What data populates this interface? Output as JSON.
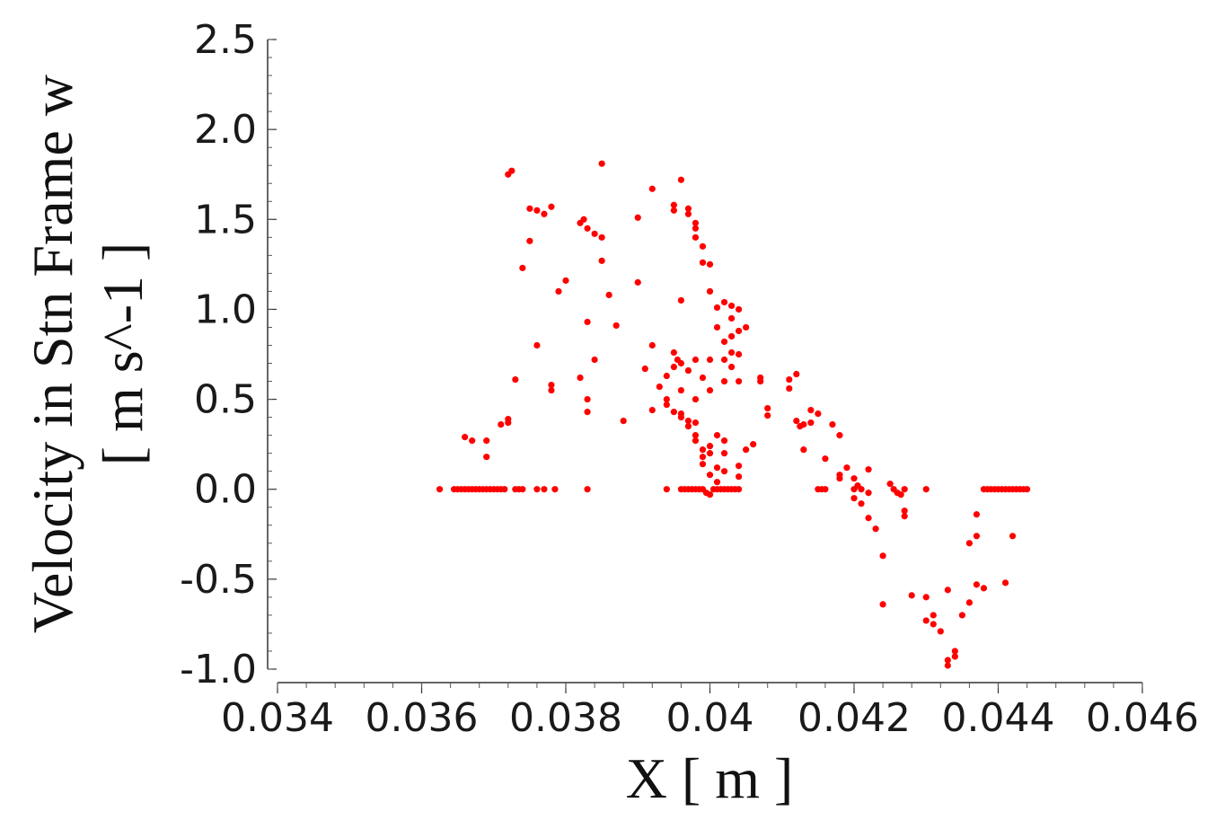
{
  "chart_data": {
    "type": "scatter",
    "xlabel": "X [ m ]",
    "ylabel_lines": [
      "Velocity in Stn Frame w",
      "[ m s^-1 ]"
    ],
    "xlim": [
      0.034,
      0.046
    ],
    "ylim": [
      -1.0,
      2.5
    ],
    "xticks": [
      "0.034",
      "0.036",
      "0.038",
      "0.04",
      "0.042",
      "0.044",
      "0.046"
    ],
    "yticks": [
      "-1.0",
      "-0.5",
      "0.0",
      "0.5",
      "1.0",
      "1.5",
      "2.0",
      "2.5"
    ],
    "grid": false,
    "marker_color": "#ff0000",
    "points": [
      [
        0.03625,
        0.0
      ],
      [
        0.03645,
        0.0
      ],
      [
        0.0365,
        0.0
      ],
      [
        0.03655,
        0.0
      ],
      [
        0.0366,
        0.0
      ],
      [
        0.03665,
        0.0
      ],
      [
        0.0367,
        0.0
      ],
      [
        0.03675,
        0.0
      ],
      [
        0.0368,
        0.0
      ],
      [
        0.03685,
        0.0
      ],
      [
        0.0369,
        0.0
      ],
      [
        0.03695,
        0.0
      ],
      [
        0.037,
        0.0
      ],
      [
        0.03705,
        0.0
      ],
      [
        0.0371,
        0.0
      ],
      [
        0.03715,
        0.0
      ],
      [
        0.0373,
        0.0
      ],
      [
        0.03735,
        0.0
      ],
      [
        0.0374,
        0.0
      ],
      [
        0.0376,
        0.0
      ],
      [
        0.0377,
        0.0
      ],
      [
        0.03785,
        0.0
      ],
      [
        0.0383,
        0.0
      ],
      [
        0.0366,
        0.29
      ],
      [
        0.0367,
        0.27
      ],
      [
        0.0369,
        0.18
      ],
      [
        0.0369,
        0.27
      ],
      [
        0.0371,
        0.36
      ],
      [
        0.0372,
        0.37
      ],
      [
        0.0372,
        0.39
      ],
      [
        0.0373,
        0.61
      ],
      [
        0.0372,
        1.75
      ],
      [
        0.03725,
        1.77
      ],
      [
        0.0374,
        1.23
      ],
      [
        0.0375,
        1.38
      ],
      [
        0.0375,
        1.56
      ],
      [
        0.0376,
        1.55
      ],
      [
        0.0377,
        1.53
      ],
      [
        0.0378,
        1.57
      ],
      [
        0.0376,
        0.8
      ],
      [
        0.0378,
        0.55
      ],
      [
        0.0378,
        0.58
      ],
      [
        0.0379,
        1.1
      ],
      [
        0.038,
        1.16
      ],
      [
        0.0382,
        1.48
      ],
      [
        0.03825,
        1.5
      ],
      [
        0.0383,
        1.45
      ],
      [
        0.0384,
        1.42
      ],
      [
        0.0385,
        1.4
      ],
      [
        0.0385,
        1.81
      ],
      [
        0.0385,
        1.27
      ],
      [
        0.0386,
        1.08
      ],
      [
        0.0387,
        0.91
      ],
      [
        0.0383,
        0.93
      ],
      [
        0.0384,
        0.72
      ],
      [
        0.0382,
        0.62
      ],
      [
        0.0383,
        0.5
      ],
      [
        0.0383,
        0.43
      ],
      [
        0.0388,
        0.38
      ],
      [
        0.039,
        1.15
      ],
      [
        0.039,
        1.51
      ],
      [
        0.0392,
        1.67
      ],
      [
        0.0391,
        0.67
      ],
      [
        0.0392,
        0.44
      ],
      [
        0.0392,
        0.8
      ],
      [
        0.0393,
        0.57
      ],
      [
        0.0394,
        0.63
      ],
      [
        0.0394,
        0.5
      ],
      [
        0.0394,
        0.47
      ],
      [
        0.0395,
        0.43
      ],
      [
        0.0395,
        0.68
      ],
      [
        0.03955,
        0.72
      ],
      [
        0.0396,
        0.4
      ],
      [
        0.0396,
        0.7
      ],
      [
        0.0395,
        0.76
      ],
      [
        0.0396,
        0.55
      ],
      [
        0.0395,
        1.58
      ],
      [
        0.0395,
        1.55
      ],
      [
        0.0396,
        1.72
      ],
      [
        0.0397,
        1.53
      ],
      [
        0.0397,
        1.56
      ],
      [
        0.0398,
        1.48
      ],
      [
        0.0398,
        1.45
      ],
      [
        0.0398,
        1.4
      ],
      [
        0.0399,
        1.35
      ],
      [
        0.0399,
        1.26
      ],
      [
        0.04,
        1.25
      ],
      [
        0.04,
        1.1
      ],
      [
        0.0396,
        1.05
      ],
      [
        0.0396,
        0.42
      ],
      [
        0.0397,
        0.38
      ],
      [
        0.0397,
        0.35
      ],
      [
        0.0398,
        0.3
      ],
      [
        0.0398,
        0.27
      ],
      [
        0.0398,
        0.37
      ],
      [
        0.0399,
        0.22
      ],
      [
        0.0399,
        0.18
      ],
      [
        0.0399,
        0.14
      ],
      [
        0.04,
        0.2
      ],
      [
        0.04,
        0.24
      ],
      [
        0.04,
        0.08
      ],
      [
        0.0401,
        0.3
      ],
      [
        0.0401,
        0.12
      ],
      [
        0.0401,
        0.04
      ],
      [
        0.0402,
        0.27
      ],
      [
        0.0402,
        0.2
      ],
      [
        0.0402,
        0.1
      ],
      [
        0.0398,
        0.5
      ],
      [
        0.0397,
        0.66
      ],
      [
        0.0398,
        0.72
      ],
      [
        0.0399,
        0.62
      ],
      [
        0.04,
        0.55
      ],
      [
        0.04,
        0.72
      ],
      [
        0.0401,
        0.9
      ],
      [
        0.0401,
        1.01
      ],
      [
        0.0402,
        1.04
      ],
      [
        0.0402,
        0.82
      ],
      [
        0.0402,
        0.72
      ],
      [
        0.0402,
        0.6
      ],
      [
        0.0403,
        1.02
      ],
      [
        0.0403,
        0.95
      ],
      [
        0.0403,
        0.85
      ],
      [
        0.0403,
        0.76
      ],
      [
        0.0403,
        0.68
      ],
      [
        0.0404,
        1.0
      ],
      [
        0.0404,
        0.88
      ],
      [
        0.0404,
        0.75
      ],
      [
        0.0404,
        0.6
      ],
      [
        0.0405,
        0.9
      ],
      [
        0.0404,
        0.13
      ],
      [
        0.0404,
        0.07
      ],
      [
        0.0405,
        0.22
      ],
      [
        0.0406,
        0.25
      ],
      [
        0.0407,
        0.62
      ],
      [
        0.0407,
        0.6
      ],
      [
        0.0394,
        0.0
      ],
      [
        0.0396,
        0.0
      ],
      [
        0.03965,
        0.0
      ],
      [
        0.0397,
        0.0
      ],
      [
        0.03975,
        0.0
      ],
      [
        0.0398,
        0.0
      ],
      [
        0.03985,
        0.0
      ],
      [
        0.0399,
        0.0
      ],
      [
        0.03995,
        -0.02
      ],
      [
        0.04,
        -0.03
      ],
      [
        0.04005,
        0.0
      ],
      [
        0.0401,
        0.0
      ],
      [
        0.04015,
        0.0
      ],
      [
        0.0402,
        0.0
      ],
      [
        0.04025,
        0.0
      ],
      [
        0.0403,
        0.0
      ],
      [
        0.04035,
        0.0
      ],
      [
        0.0404,
        0.0
      ],
      [
        0.0408,
        0.45
      ],
      [
        0.0408,
        0.41
      ],
      [
        0.0411,
        0.61
      ],
      [
        0.0412,
        0.64
      ],
      [
        0.0411,
        0.56
      ],
      [
        0.0412,
        0.38
      ],
      [
        0.04125,
        0.35
      ],
      [
        0.0413,
        0.36
      ],
      [
        0.0413,
        0.22
      ],
      [
        0.0414,
        0.44
      ],
      [
        0.0414,
        0.37
      ],
      [
        0.0415,
        0.42
      ],
      [
        0.0415,
        0.0
      ],
      [
        0.04155,
        0.0
      ],
      [
        0.0416,
        0.0
      ],
      [
        0.0416,
        0.17
      ],
      [
        0.0417,
        0.36
      ],
      [
        0.0418,
        0.08
      ],
      [
        0.0418,
        0.06
      ],
      [
        0.0418,
        0.3
      ],
      [
        0.0419,
        0.12
      ],
      [
        0.042,
        0.06
      ],
      [
        0.042,
        0.0
      ],
      [
        0.042,
        -0.05
      ],
      [
        0.04205,
        0.02
      ],
      [
        0.0421,
        -0.08
      ],
      [
        0.0421,
        0.0
      ],
      [
        0.0422,
        -0.02
      ],
      [
        0.0422,
        0.11
      ],
      [
        0.0422,
        -0.16
      ],
      [
        0.0423,
        -0.22
      ],
      [
        0.0424,
        -0.37
      ],
      [
        0.0424,
        -0.64
      ],
      [
        0.0425,
        0.03
      ],
      [
        0.04255,
        0.0
      ],
      [
        0.0426,
        -0.02
      ],
      [
        0.04265,
        -0.03
      ],
      [
        0.0427,
        0.0
      ],
      [
        0.0427,
        -0.12
      ],
      [
        0.0427,
        -0.15
      ],
      [
        0.0428,
        -0.59
      ],
      [
        0.043,
        0.0
      ],
      [
        0.043,
        -0.6
      ],
      [
        0.043,
        -0.73
      ],
      [
        0.0431,
        -0.7
      ],
      [
        0.0431,
        -0.75
      ],
      [
        0.0432,
        -0.79
      ],
      [
        0.0433,
        -0.56
      ],
      [
        0.0433,
        -0.95
      ],
      [
        0.0433,
        -0.98
      ],
      [
        0.0434,
        -0.9
      ],
      [
        0.0434,
        -0.93
      ],
      [
        0.0435,
        -0.7
      ],
      [
        0.0436,
        -0.63
      ],
      [
        0.0436,
        -0.3
      ],
      [
        0.0437,
        -0.53
      ],
      [
        0.0437,
        -0.14
      ],
      [
        0.0437,
        -0.26
      ],
      [
        0.0438,
        -0.55
      ],
      [
        0.0438,
        0.0
      ],
      [
        0.04385,
        0.0
      ],
      [
        0.0439,
        0.0
      ],
      [
        0.04395,
        0.0
      ],
      [
        0.044,
        0.0
      ],
      [
        0.04405,
        0.0
      ],
      [
        0.0441,
        0.0
      ],
      [
        0.04415,
        0.0
      ],
      [
        0.0442,
        0.0
      ],
      [
        0.04425,
        0.0
      ],
      [
        0.0443,
        0.0
      ],
      [
        0.04435,
        0.0
      ],
      [
        0.0444,
        0.0
      ],
      [
        0.0441,
        -0.52
      ],
      [
        0.0442,
        -0.26
      ]
    ]
  }
}
